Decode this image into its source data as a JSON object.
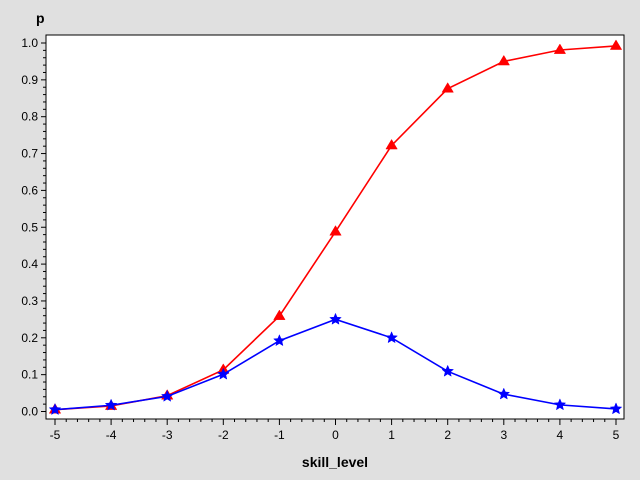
{
  "chart_data": {
    "type": "line",
    "title": "",
    "xlabel": "skill_level",
    "ylabel": "p",
    "x": [
      -5,
      -4,
      -3,
      -2,
      -1,
      0,
      1,
      2,
      3,
      4,
      5
    ],
    "xlim": [
      -5,
      5
    ],
    "ylim": [
      0,
      1
    ],
    "xticks": [
      "-5",
      "-4",
      "-3",
      "-2",
      "-1",
      "0",
      "1",
      "2",
      "3",
      "4",
      "5"
    ],
    "yticks": [
      "0.0",
      "0.1",
      "0.2",
      "0.3",
      "0.4",
      "0.5",
      "0.6",
      "0.7",
      "0.8",
      "0.9",
      "1.0"
    ],
    "grid": false,
    "legend": "none",
    "series": [
      {
        "color": "#ff0000",
        "marker": "triangle",
        "values": [
          0.005,
          0.015,
          0.043,
          0.113,
          0.259,
          0.488,
          0.722,
          0.876,
          0.95,
          0.981,
          0.992
        ]
      },
      {
        "color": "#0000ff",
        "marker": "star",
        "values": [
          0.005,
          0.017,
          0.041,
          0.101,
          0.192,
          0.25,
          0.2,
          0.109,
          0.047,
          0.018,
          0.007
        ]
      }
    ]
  }
}
